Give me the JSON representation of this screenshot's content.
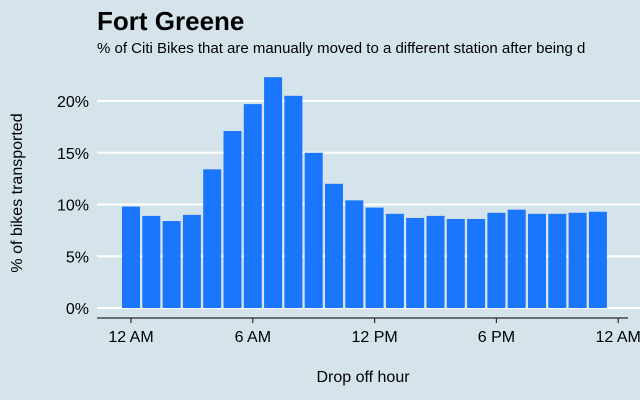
{
  "chart_data": {
    "type": "bar",
    "title": "Fort Greene",
    "subtitle": "% of Citi Bikes that are manually moved to a different station after being d",
    "xlabel": "Drop off hour",
    "ylabel": "% of bikes transported",
    "ylim": [
      0,
      22.5
    ],
    "yticks": [
      0,
      5,
      10,
      15,
      20
    ],
    "ytick_labels": [
      "0%",
      "5%",
      "10%",
      "15%",
      "20%"
    ],
    "xlim": [
      -0.8,
      24
    ],
    "xticks": [
      0,
      6,
      12,
      18,
      24
    ],
    "xtick_labels": [
      "12 AM",
      "6 AM",
      "12 PM",
      "6 PM",
      "12 AM"
    ],
    "grid": "horizontal",
    "color": "#1a76fd",
    "categories": [
      0,
      1,
      2,
      3,
      4,
      5,
      6,
      7,
      8,
      9,
      10,
      11,
      12,
      13,
      14,
      15,
      16,
      17,
      18,
      19,
      20,
      21,
      22,
      23
    ],
    "values": [
      9.8,
      8.9,
      8.4,
      9.0,
      13.4,
      17.1,
      19.7,
      22.3,
      20.5,
      15.0,
      12.0,
      10.4,
      9.7,
      9.1,
      8.7,
      8.9,
      8.6,
      8.6,
      9.2,
      9.5,
      9.1,
      9.1,
      9.2,
      9.3
    ]
  }
}
